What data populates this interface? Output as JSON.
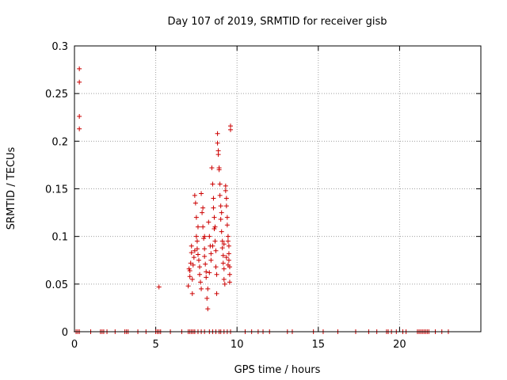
{
  "chart_data": {
    "type": "scatter",
    "title": "Day 107 of 2019, SRMTID for receiver gisb",
    "xlabel": "GPS time / hours",
    "ylabel": "SRMTID / TECUs",
    "xlim": [
      0,
      25
    ],
    "ylim": [
      0,
      0.3
    ],
    "xticks": [
      0,
      5,
      10,
      15,
      20
    ],
    "xtick_labels": [
      "0",
      "5",
      "10",
      "15",
      "20"
    ],
    "yticks": [
      0,
      0.05,
      0.1,
      0.15,
      0.2,
      0.25,
      0.3
    ],
    "ytick_labels": [
      "0",
      "0.05",
      "0.1",
      "0.15",
      "0.2",
      "0.25",
      "0.3"
    ],
    "grid": true,
    "legend": "none",
    "series": [
      {
        "color": "#cc0000",
        "marker": "plus",
        "points": [
          [
            0.3,
            0.276
          ],
          [
            0.3,
            0.262
          ],
          [
            0.3,
            0.226
          ],
          [
            0.3,
            0.213
          ],
          [
            5.2,
            0.047
          ],
          [
            7.0,
            0.048
          ],
          [
            7.05,
            0.066
          ],
          [
            7.1,
            0.064
          ],
          [
            7.1,
            0.058
          ],
          [
            7.15,
            0.072
          ],
          [
            7.2,
            0.083
          ],
          [
            7.2,
            0.09
          ],
          [
            7.25,
            0.055
          ],
          [
            7.3,
            0.07
          ],
          [
            7.35,
            0.078
          ],
          [
            7.4,
            0.143
          ],
          [
            7.45,
            0.135
          ],
          [
            7.5,
            0.12
          ],
          [
            7.5,
            0.1
          ],
          [
            7.55,
            0.095
          ],
          [
            7.55,
            0.087
          ],
          [
            7.6,
            0.081
          ],
          [
            7.65,
            0.075
          ],
          [
            7.7,
            0.068
          ],
          [
            7.7,
            0.06
          ],
          [
            7.75,
            0.052
          ],
          [
            7.8,
            0.045
          ],
          [
            7.8,
            0.145
          ],
          [
            7.85,
            0.125
          ],
          [
            7.9,
            0.11
          ],
          [
            7.95,
            0.098
          ],
          [
            8.0,
            0.087
          ],
          [
            8.0,
            0.079
          ],
          [
            8.05,
            0.071
          ],
          [
            8.1,
            0.063
          ],
          [
            8.1,
            0.057
          ],
          [
            8.15,
            0.035
          ],
          [
            8.2,
            0.024
          ],
          [
            8.2,
            0.045
          ],
          [
            8.25,
            0.115
          ],
          [
            8.3,
            0.1
          ],
          [
            8.35,
            0.09
          ],
          [
            8.4,
            0.082
          ],
          [
            8.4,
            0.075
          ],
          [
            8.45,
            0.172
          ],
          [
            8.5,
            0.155
          ],
          [
            8.55,
            0.13
          ],
          [
            8.55,
            0.14
          ],
          [
            8.6,
            0.12
          ],
          [
            8.6,
            0.108
          ],
          [
            8.65,
            0.095
          ],
          [
            8.7,
            0.085
          ],
          [
            8.7,
            0.068
          ],
          [
            8.75,
            0.06
          ],
          [
            8.75,
            0.04
          ],
          [
            8.8,
            0.208
          ],
          [
            8.8,
            0.198
          ],
          [
            8.85,
            0.19
          ],
          [
            8.85,
            0.186
          ],
          [
            8.9,
            0.172
          ],
          [
            8.9,
            0.17
          ],
          [
            8.95,
            0.155
          ],
          [
            8.95,
            0.143
          ],
          [
            9.0,
            0.132
          ],
          [
            9.0,
            0.118
          ],
          [
            9.05,
            0.105
          ],
          [
            9.1,
            0.095
          ],
          [
            9.1,
            0.088
          ],
          [
            9.15,
            0.08
          ],
          [
            9.15,
            0.072
          ],
          [
            9.2,
            0.066
          ],
          [
            9.2,
            0.055
          ],
          [
            9.25,
            0.05
          ],
          [
            9.3,
            0.153
          ],
          [
            9.3,
            0.148
          ],
          [
            9.35,
            0.14
          ],
          [
            9.35,
            0.132
          ],
          [
            9.4,
            0.12
          ],
          [
            9.4,
            0.112
          ],
          [
            9.45,
            0.1
          ],
          [
            9.45,
            0.095
          ],
          [
            9.5,
            0.09
          ],
          [
            9.5,
            0.082
          ],
          [
            9.5,
            0.075
          ],
          [
            9.55,
            0.068
          ],
          [
            9.55,
            0.06
          ],
          [
            9.55,
            0.052
          ],
          [
            9.6,
            0.216
          ],
          [
            9.6,
            0.212
          ],
          [
            7.25,
            0.04
          ],
          [
            7.6,
            0.11
          ],
          [
            7.9,
            0.13
          ],
          [
            8.3,
            0.062
          ],
          [
            8.65,
            0.11
          ],
          [
            9.05,
            0.125
          ],
          [
            9.2,
            0.092
          ],
          [
            7.4,
            0.085
          ],
          [
            8.0,
            0.1
          ],
          [
            8.5,
            0.09
          ],
          [
            9.35,
            0.078
          ],
          [
            9.45,
            0.07
          ]
        ]
      },
      {
        "color": "#cc0000",
        "marker": "plus",
        "points": [
          [
            0.1,
            0
          ],
          [
            0.2,
            0
          ],
          [
            0.3,
            0
          ],
          [
            1.0,
            0
          ],
          [
            1.6,
            0
          ],
          [
            1.7,
            0
          ],
          [
            1.8,
            0
          ],
          [
            2.0,
            0
          ],
          [
            2.5,
            0
          ],
          [
            3.1,
            0
          ],
          [
            3.2,
            0
          ],
          [
            3.3,
            0
          ],
          [
            3.9,
            0
          ],
          [
            4.4,
            0
          ],
          [
            5.0,
            0
          ],
          [
            5.1,
            0
          ],
          [
            5.2,
            0
          ],
          [
            5.3,
            0
          ],
          [
            5.9,
            0
          ],
          [
            6.6,
            0
          ],
          [
            7.0,
            0
          ],
          [
            7.1,
            0
          ],
          [
            7.2,
            0
          ],
          [
            7.3,
            0
          ],
          [
            7.4,
            0
          ],
          [
            7.6,
            0
          ],
          [
            7.8,
            0
          ],
          [
            8.0,
            0
          ],
          [
            8.3,
            0
          ],
          [
            8.5,
            0
          ],
          [
            8.7,
            0
          ],
          [
            8.9,
            0
          ],
          [
            9.0,
            0
          ],
          [
            9.2,
            0
          ],
          [
            9.4,
            0
          ],
          [
            9.6,
            0
          ],
          [
            10.5,
            0
          ],
          [
            10.9,
            0
          ],
          [
            11.3,
            0
          ],
          [
            11.6,
            0
          ],
          [
            12.0,
            0
          ],
          [
            13.1,
            0
          ],
          [
            13.4,
            0
          ],
          [
            14.7,
            0
          ],
          [
            15.3,
            0
          ],
          [
            16.2,
            0
          ],
          [
            17.3,
            0
          ],
          [
            18.1,
            0
          ],
          [
            18.6,
            0
          ],
          [
            19.2,
            0
          ],
          [
            19.3,
            0
          ],
          [
            19.5,
            0
          ],
          [
            19.8,
            0
          ],
          [
            20.2,
            0
          ],
          [
            20.4,
            0
          ],
          [
            21.1,
            0
          ],
          [
            21.2,
            0
          ],
          [
            21.3,
            0
          ],
          [
            21.4,
            0
          ],
          [
            21.5,
            0
          ],
          [
            21.6,
            0
          ],
          [
            21.7,
            0
          ],
          [
            21.8,
            0
          ],
          [
            22.2,
            0
          ],
          [
            22.6,
            0
          ],
          [
            23.0,
            0
          ]
        ]
      }
    ]
  }
}
